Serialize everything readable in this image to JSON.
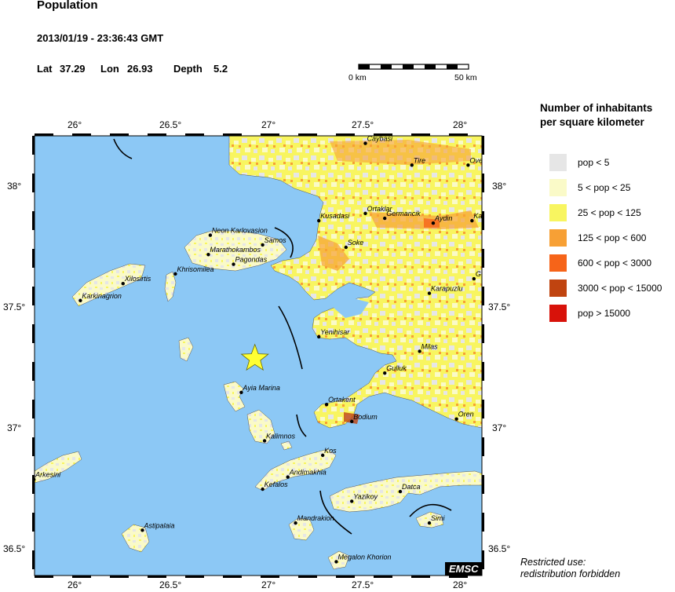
{
  "header": {
    "title": "Population",
    "datetime": "2013/01/19 - 23:36:43 GMT",
    "lat_label": "Lat",
    "lat": "37.29",
    "lon_label": "Lon",
    "lon": "26.93",
    "depth_label": "Depth",
    "depth": "5.2"
  },
  "scale_bar": {
    "left_label": "0 km",
    "right_label": "50 km"
  },
  "axes": {
    "lon_ticks": [
      "26°",
      "26.5°",
      "27°",
      "27.5°",
      "28°"
    ],
    "lat_ticks": [
      "38°",
      "37.5°",
      "37°",
      "36.5°"
    ]
  },
  "legend": {
    "title_line1": "Number of inhabitants",
    "title_line2": "per square kilometer",
    "items": [
      {
        "label": "pop < 5",
        "color": "#e6e6e6"
      },
      {
        "label": "5 < pop < 25",
        "color": "#fafac8"
      },
      {
        "label": "25 < pop < 125",
        "color": "#f8f560"
      },
      {
        "label": "125 < pop < 600",
        "color": "#f7a035"
      },
      {
        "label": "600 < pop < 3000",
        "color": "#f66419"
      },
      {
        "label": "3000 < pop < 15000",
        "color": "#c04410"
      },
      {
        "label": "pop > 15000",
        "color": "#d8120a"
      }
    ]
  },
  "map": {
    "sea_color": "#8cc8f5",
    "epicenter": {
      "lat": 37.29,
      "lon": 26.93,
      "color": "#ffff33"
    },
    "cities": [
      {
        "name": "Caybasi",
        "lat": 38.18,
        "lon": 27.5
      },
      {
        "name": "Tire",
        "lat": 38.09,
        "lon": 27.74
      },
      {
        "name": "Ove",
        "lat": 38.09,
        "lon": 28.03
      },
      {
        "name": "Kusadasi",
        "lat": 37.86,
        "lon": 27.26
      },
      {
        "name": "Ortaklar",
        "lat": 37.89,
        "lon": 27.5
      },
      {
        "name": "Germancik",
        "lat": 37.87,
        "lon": 27.6
      },
      {
        "name": "Aydin",
        "lat": 37.85,
        "lon": 27.85
      },
      {
        "name": "Ka",
        "lat": 37.86,
        "lon": 28.05
      },
      {
        "name": "Neon Karlovasion",
        "lat": 37.8,
        "lon": 26.7
      },
      {
        "name": "Samos",
        "lat": 37.76,
        "lon": 26.97
      },
      {
        "name": "Marathokambos",
        "lat": 37.72,
        "lon": 26.69
      },
      {
        "name": "Soke",
        "lat": 37.75,
        "lon": 27.4
      },
      {
        "name": "Pagondas",
        "lat": 37.68,
        "lon": 26.82
      },
      {
        "name": "Khrisomilea",
        "lat": 37.64,
        "lon": 26.52
      },
      {
        "name": "Xilosirtis",
        "lat": 37.6,
        "lon": 26.25
      },
      {
        "name": "Karkinagrion",
        "lat": 37.53,
        "lon": 26.03
      },
      {
        "name": "Karapuzlu",
        "lat": 37.56,
        "lon": 27.83
      },
      {
        "name": "G",
        "lat": 37.62,
        "lon": 28.06
      },
      {
        "name": "Yenihisar",
        "lat": 37.38,
        "lon": 27.26
      },
      {
        "name": "Milas",
        "lat": 37.32,
        "lon": 27.78
      },
      {
        "name": "Gulluk",
        "lat": 37.23,
        "lon": 27.6
      },
      {
        "name": "Ayia Marina",
        "lat": 37.15,
        "lon": 26.86
      },
      {
        "name": "Ortakent",
        "lat": 37.1,
        "lon": 27.3
      },
      {
        "name": "Bodium",
        "lat": 37.03,
        "lon": 27.43
      },
      {
        "name": "Oren",
        "lat": 37.04,
        "lon": 27.97
      },
      {
        "name": "Kalimnos",
        "lat": 36.95,
        "lon": 26.98
      },
      {
        "name": "Kos",
        "lat": 36.89,
        "lon": 27.28
      },
      {
        "name": "Andimakhia",
        "lat": 36.8,
        "lon": 27.1
      },
      {
        "name": "Arkesini",
        "lat": 36.79,
        "lon": 25.79
      },
      {
        "name": "Kefalos",
        "lat": 36.75,
        "lon": 26.97
      },
      {
        "name": "Datca",
        "lat": 36.74,
        "lon": 27.68
      },
      {
        "name": "Yazikoy",
        "lat": 36.7,
        "lon": 27.43
      },
      {
        "name": "Mandrakion",
        "lat": 36.61,
        "lon": 27.14
      },
      {
        "name": "Simi",
        "lat": 36.61,
        "lon": 27.83
      },
      {
        "name": "Astipalaia",
        "lat": 36.58,
        "lon": 26.35
      },
      {
        "name": "Megalon Khorion",
        "lat": 36.45,
        "lon": 27.35
      }
    ],
    "watermark": "EMSC"
  },
  "note": {
    "line1": "Restricted use:",
    "line2": "redistribution forbidden"
  }
}
